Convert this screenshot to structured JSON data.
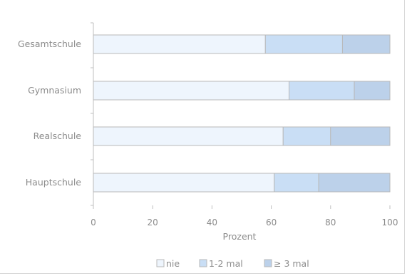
{
  "chart_data": {
    "type": "bar",
    "orientation": "horizontal",
    "stacked": true,
    "categories": [
      "Gesamtschule",
      "Gymnasium",
      "Realschule",
      "Hauptschule"
    ],
    "series": [
      {
        "name": "nie",
        "color": "#eef5fd",
        "values": [
          58,
          66,
          64,
          61
        ]
      },
      {
        "name": "1-2 mal",
        "color": "#c9def5",
        "values": [
          26,
          22,
          16,
          15
        ]
      },
      {
        "name": "≥ 3 mal",
        "color": "#bcd1ea",
        "values": [
          16,
          12,
          20,
          24
        ]
      }
    ],
    "xlabel": "Prozent",
    "xlim": [
      0,
      100
    ],
    "xticks": [
      "0",
      "20",
      "40",
      "60",
      "80",
      "100"
    ],
    "grid": false,
    "legend_position": "bottom"
  },
  "colors": {
    "bar_border": "#b9b9b9",
    "axis": "#bfbfbf",
    "text": "#8c8c8c"
  }
}
